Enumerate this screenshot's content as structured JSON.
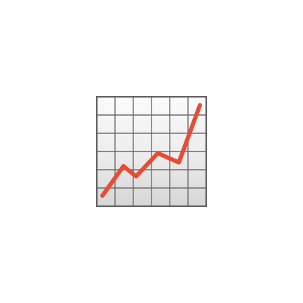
{
  "icon": {
    "name": "chart-increasing-icon",
    "colors": {
      "frame": "#5f5f5f",
      "grid": "#6a6a6a",
      "background_light": "#fbfbfb",
      "background_mid": "#ececec",
      "background_dark": "#d6d6d6",
      "line": "#ea4b35"
    },
    "series": [
      1.0,
      2.6,
      2.05,
      3.3,
      2.8,
      5.9
    ]
  }
}
